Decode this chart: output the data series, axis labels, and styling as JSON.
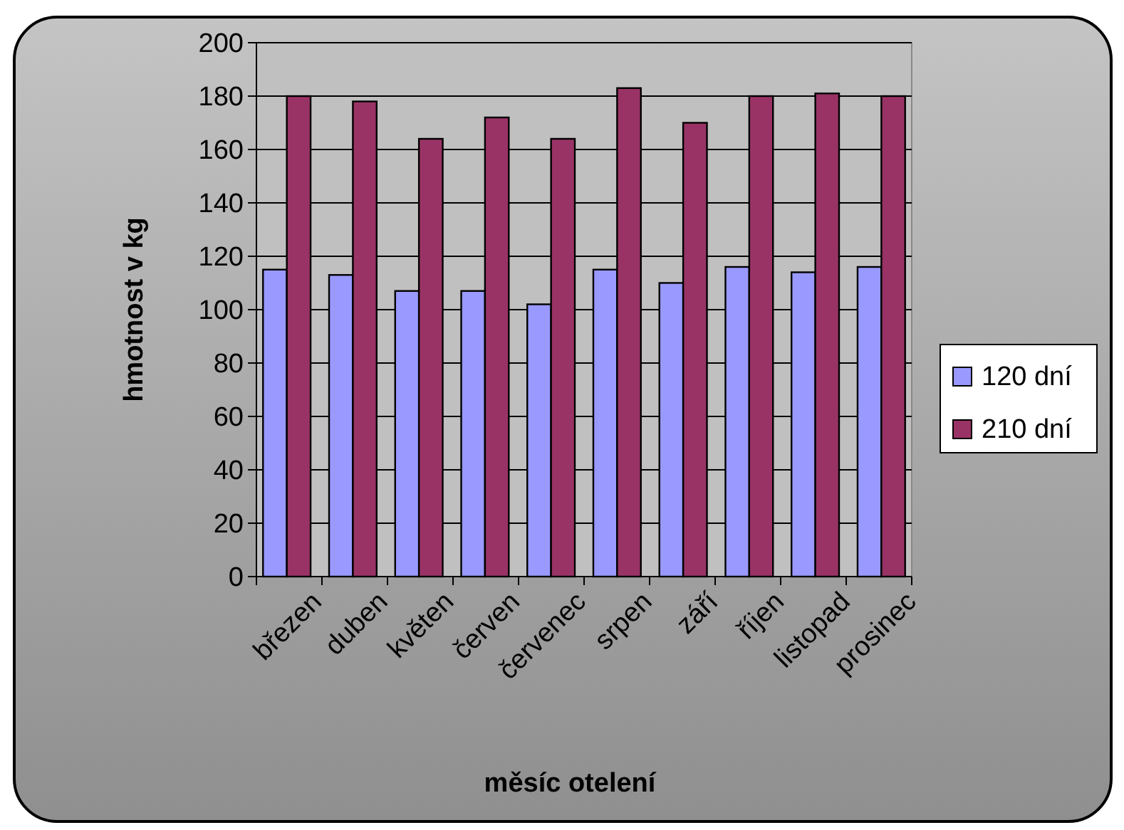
{
  "chart_data": {
    "type": "bar",
    "xlabel": "měsíc otelení",
    "ylabel": "hmotnost v kg",
    "categories": [
      "březen",
      "duben",
      "květen",
      "červen",
      "červenec",
      "srpen",
      "září",
      "říjen",
      "listopad",
      "prosinec"
    ],
    "series": [
      {
        "name": "120 dní",
        "color": "#9999ff",
        "values": [
          115,
          113,
          107,
          107,
          102,
          115,
          110,
          116,
          114,
          116
        ]
      },
      {
        "name": "210 dní",
        "color": "#993366",
        "values": [
          180,
          178,
          164,
          172,
          164,
          183,
          170,
          180,
          181,
          180
        ]
      }
    ],
    "ylim": [
      0,
      200
    ],
    "yticks": [
      0,
      20,
      40,
      60,
      80,
      100,
      120,
      140,
      160,
      180,
      200
    ],
    "grid": "y",
    "legend": "right"
  }
}
